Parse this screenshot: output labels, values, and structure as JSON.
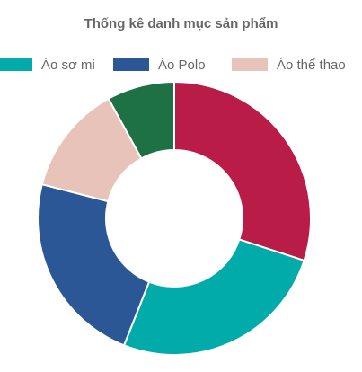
{
  "chart_data": {
    "type": "pie",
    "variant": "doughnut",
    "title": "Thống kê danh mục sản phẩm",
    "categories": [
      "Áo sơ mi",
      "Áo Polo",
      "Áo thể thao"
    ],
    "legend_position": "top",
    "colors": {
      "Áo sơ mi": "#00aba9",
      "Áo Polo": "#2b5797",
      "Áo thể thao": "#e8c3b9",
      "unlabeled_1": "#b91d47",
      "unlabeled_2": "#1e7145"
    },
    "slices": [
      {
        "label": "unlabeled_1",
        "value": 30,
        "color": "#b91d47"
      },
      {
        "label": "Áo sơ mi",
        "value": 26,
        "color": "#00aba9"
      },
      {
        "label": "Áo Polo",
        "value": 23,
        "color": "#2b5797"
      },
      {
        "label": "Áo thể thao",
        "value": 13,
        "color": "#e8c3b9"
      },
      {
        "label": "unlabeled_2",
        "value": 8,
        "color": "#1e7145"
      }
    ]
  }
}
